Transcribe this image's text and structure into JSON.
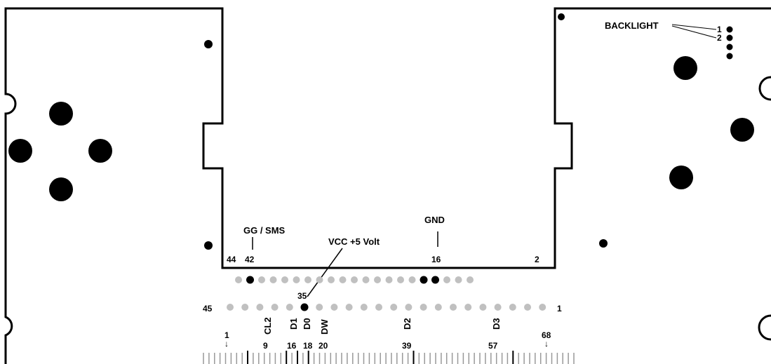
{
  "labels": {
    "backlight": "BACKLIGHT",
    "backlight_pin1": "1",
    "backlight_pin2": "2",
    "gg_sms": "GG / SMS",
    "vcc": "VCC +5 Volt",
    "gnd": "GND"
  },
  "pins_top": [
    "44",
    "42",
    "16",
    "2"
  ],
  "row_marker": "35",
  "pins_bottom": [
    "45",
    "1"
  ],
  "signals": [
    "CL2",
    "D1",
    "D0",
    "DW",
    "D2",
    "D3"
  ],
  "scale_top": [
    "1",
    "68"
  ],
  "scale_bottom": [
    "9",
    "16",
    "18",
    "20",
    "39",
    "57"
  ],
  "colors": {
    "outline": "#000000",
    "active_pin": "#000000",
    "inactive_pin": "#c0c0c0",
    "background": "#ffffff"
  }
}
